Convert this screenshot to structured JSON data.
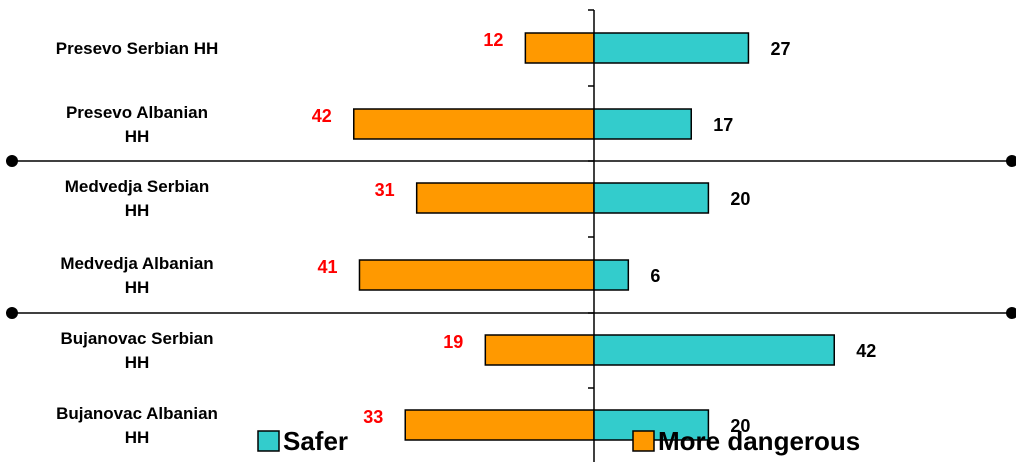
{
  "chart_data": {
    "type": "bar",
    "orientation": "horizontal-diverging",
    "categories": [
      [
        "Presevo  Serbian HH"
      ],
      [
        "Presevo  Albanian",
        "HH"
      ],
      [
        "Medvedja  Serbian",
        "HH"
      ],
      [
        "Medvedja  Albanian",
        "HH"
      ],
      [
        "Bujanovac  Serbian",
        "HH"
      ],
      [
        "Bujanovac  Albanian",
        "HH"
      ]
    ],
    "series": [
      {
        "name": "Safer",
        "direction": "right",
        "color": "#33CCCC",
        "values": [
          27,
          17,
          20,
          6,
          42,
          20
        ]
      },
      {
        "name": "More dangerous",
        "direction": "left",
        "color": "#FF9900",
        "values": [
          12,
          42,
          31,
          41,
          19,
          33
        ]
      }
    ],
    "label_colors": {
      "More dangerous": "#FF0000",
      "Safer": "#000000"
    },
    "legend_position": "bottom",
    "group_dividers_after_index": [
      1,
      3
    ],
    "grid": false
  }
}
